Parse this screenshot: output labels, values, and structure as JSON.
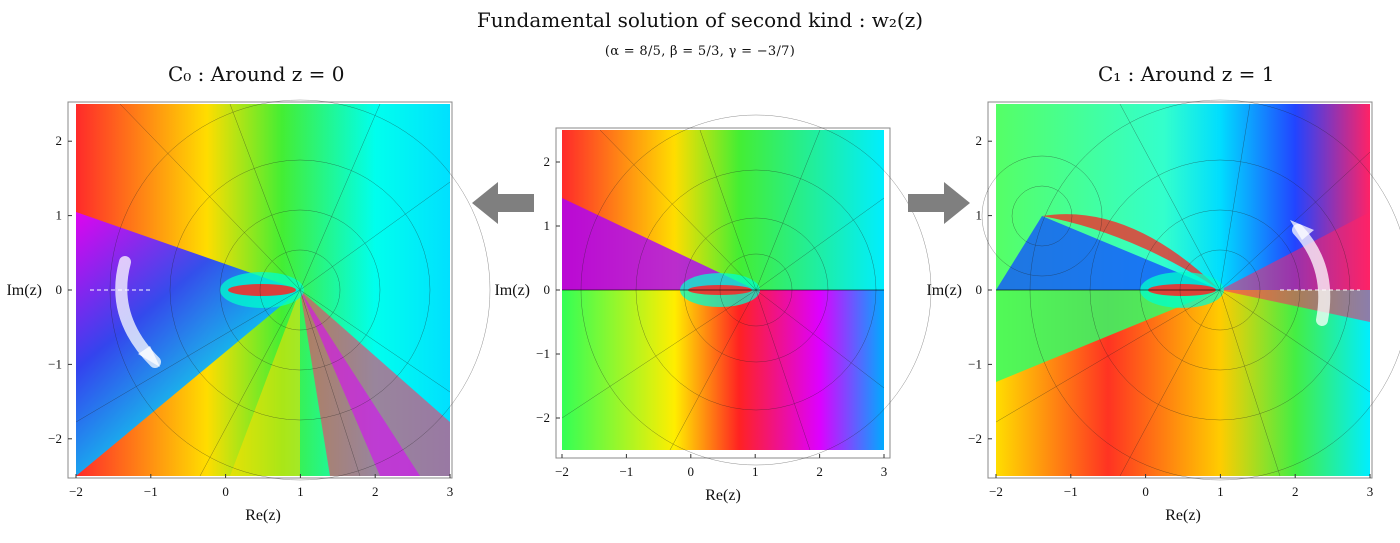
{
  "header": {
    "title": "Fundamental solution of second kind  : w₂(z)",
    "params": "(α = 8/5,  β = 5/3,  γ = −3/7)"
  },
  "panels": [
    {
      "id": "left",
      "title": "C₀  :  Around z = 0",
      "xlabel": "Re(z)",
      "ylabel": "Im(z)",
      "xticks": [
        "−2",
        "−1",
        "0",
        "1",
        "2",
        "3"
      ],
      "yticks": [
        "2",
        "1",
        "0",
        "−1",
        "−2"
      ],
      "xrange": [
        -2,
        3
      ],
      "yrange": [
        -2.5,
        2.5
      ]
    },
    {
      "id": "center",
      "title": "",
      "xlabel": "Re(z)",
      "ylabel": "Im(z)",
      "xticks": [
        "−2",
        "−1",
        "0",
        "1",
        "2",
        "3"
      ],
      "yticks": [
        "2",
        "1",
        "0",
        "−1",
        "−2"
      ],
      "xrange": [
        -2,
        3
      ],
      "yrange": [
        -2.5,
        2.5
      ]
    },
    {
      "id": "right",
      "title": "C₁  :  Around z = 1",
      "xlabel": "Re(z)",
      "ylabel": "Im(z)",
      "xticks": [
        "−2",
        "−1",
        "0",
        "1",
        "2",
        "3"
      ],
      "yticks": [
        "2",
        "1",
        "0",
        "−1",
        "−2"
      ],
      "xrange": [
        -2,
        3
      ],
      "yrange": [
        -2.5,
        2.5
      ]
    }
  ],
  "arrows": {
    "left_arrow_icon": "arrow-left-icon",
    "right_arrow_icon": "arrow-right-icon",
    "left_curve_icon": "curved-arrow-down-icon",
    "right_curve_icon": "curved-arrow-up-icon",
    "color": "#7f7f7f"
  }
}
